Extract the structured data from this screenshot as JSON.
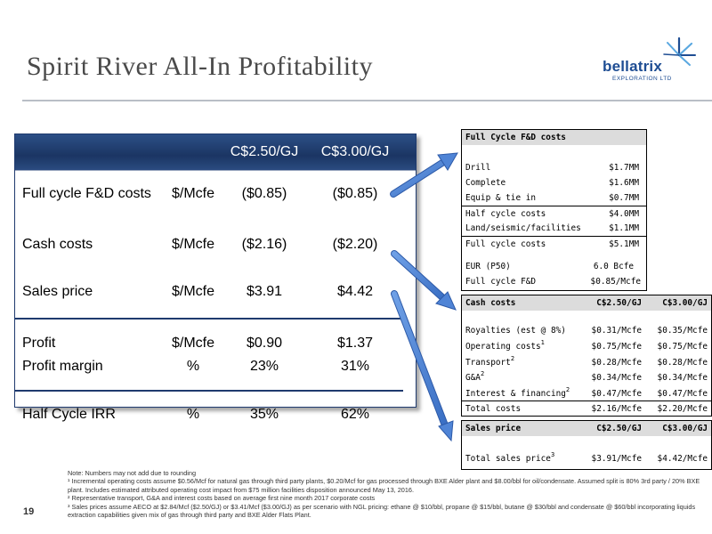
{
  "title": "Spirit River All-In Profitability",
  "logo": {
    "name": "bellatrix",
    "subtitle": "EXPLORATION LTD"
  },
  "main_table": {
    "headers": [
      "",
      "",
      "C$2.50/GJ",
      "C$3.00/GJ"
    ],
    "rows": [
      {
        "label": "Full cycle F&D costs",
        "unit": "$/Mcfe",
        "v1": "($0.85)",
        "v2": "($0.85)"
      },
      {
        "label": "Cash costs",
        "unit": "$/Mcfe",
        "v1": "($2.16)",
        "v2": "($2.20)"
      },
      {
        "label": "Sales price",
        "unit": "$/Mcfe",
        "v1": "$3.91",
        "v2": "$4.42"
      },
      {
        "label": "Profit",
        "unit": "$/Mcfe",
        "v1": "$0.90",
        "v2": "$1.37"
      },
      {
        "label": "Profit margin",
        "unit": "%",
        "v1": "23%",
        "v2": "31%"
      },
      {
        "label": "Half Cycle IRR",
        "unit": "%",
        "v1": "35%",
        "v2": "62%"
      }
    ]
  },
  "fd_table": {
    "title": "Full Cycle F&D costs",
    "rows": [
      {
        "label": "Drill",
        "value": "$1.7MM"
      },
      {
        "label": "Complete",
        "value": "$1.6MM"
      },
      {
        "label": "Equip & tie in",
        "value": "$0.7MM"
      },
      {
        "label": "Half cycle costs",
        "value": "$4.0MM"
      },
      {
        "label": "Land/seismic/facilities",
        "value": "$1.1MM"
      },
      {
        "label": "Full cycle costs",
        "value": "$5.1MM"
      },
      {
        "label": "EUR (P50)",
        "value": "6.0 Bcfe"
      },
      {
        "label": "Full cycle F&D",
        "value": "$0.85/Mcfe"
      }
    ]
  },
  "cash_table": {
    "header": [
      "Cash costs",
      "C$2.50/GJ",
      "C$3.00/GJ"
    ],
    "rows": [
      {
        "label": "Royalties (est @ 8%)",
        "sup": "",
        "v1": "$0.31/Mcfe",
        "v2": "$0.35/Mcfe"
      },
      {
        "label": "Operating costs",
        "sup": "1",
        "v1": "$0.75/Mcfe",
        "v2": "$0.75/Mcfe"
      },
      {
        "label": "Transport",
        "sup": "2",
        "v1": "$0.28/Mcfe",
        "v2": "$0.28/Mcfe"
      },
      {
        "label": "G&A",
        "sup": "2",
        "v1": "$0.34/Mcfe",
        "v2": "$0.34/Mcfe"
      },
      {
        "label": "Interest & financing",
        "sup": "2",
        "v1": "$0.47/Mcfe",
        "v2": "$0.47/Mcfe"
      },
      {
        "label": "Total costs",
        "sup": "",
        "v1": "$2.16/Mcfe",
        "v2": "$2.20/Mcfe"
      }
    ]
  },
  "sales_table": {
    "header": [
      "Sales price",
      "C$2.50/GJ",
      "C$3.00/GJ"
    ],
    "row": {
      "label": "Total sales price",
      "sup": "3",
      "v1": "$3.91/Mcfe",
      "v2": "$4.42/Mcfe"
    }
  },
  "notes": [
    "Note: Numbers may not add due to rounding",
    "¹ Incremental operating costs assume $0.56/Mcf for natural gas through third party plants, $0.20/Mcf for gas processed through BXE Alder plant and $8.00/bbl for oil/condensate. Assumed split is 80% 3rd party / 20% BXE plant. Includes estimated attributed operating cost impact from $75 million facilities disposition announced May 13, 2016.",
    "² Representative transport, G&A and interest costs based on average first nine month 2017 corporate costs",
    "³ Sales prices assume AECO at $2.84/Mcf ($2.50/GJ) or $3.41/Mcf ($3.00/GJ) as per scenario with NGL pricing: ethane @ $10/bbl, propane @ $15/bbl, butane @ $30/bbl and condensate @ $60/bbl incorporating liquids extraction capabilities given mix of gas through third party and BXE Alder Flats Plant."
  ],
  "page_number": "19",
  "colors": {
    "header_navy": "#1b3563",
    "arrow_blue": "#4f84d6",
    "logo_blue": "#1e4d93"
  }
}
